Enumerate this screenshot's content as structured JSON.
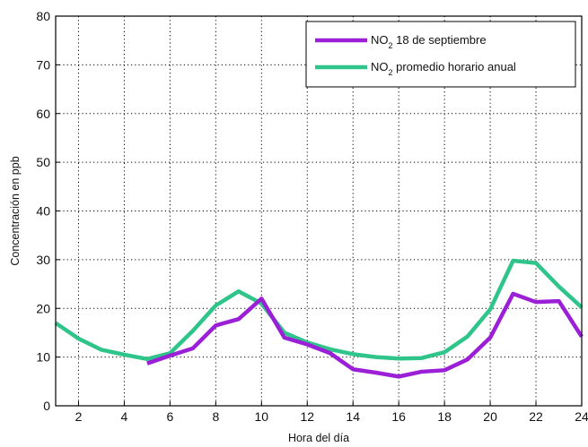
{
  "chart_data": {
    "type": "line",
    "title": "",
    "xlabel": "Hora del día",
    "ylabel": "Concentración en ppb",
    "xlim": [
      1,
      24
    ],
    "ylim": [
      0,
      80
    ],
    "xticks": [
      2,
      4,
      6,
      8,
      10,
      12,
      14,
      16,
      18,
      20,
      22,
      24
    ],
    "yticks": [
      0,
      10,
      20,
      30,
      40,
      50,
      60,
      70,
      80
    ],
    "grid": true,
    "legend_position": "top-right",
    "series": [
      {
        "name": "NO",
        "name_sub": "2",
        "name_suffix": " 18 de septiembre",
        "color": "#9b1fd6",
        "x": [
          5,
          6,
          7,
          8,
          9,
          10,
          11,
          12,
          13,
          14,
          15,
          16,
          17,
          18,
          19,
          20,
          21,
          22,
          23,
          24
        ],
        "y": [
          8.7,
          10.3,
          11.8,
          16.5,
          17.8,
          22,
          14,
          12.6,
          10.8,
          7.5,
          6.8,
          6,
          7,
          7.3,
          9.5,
          14,
          23,
          21.3,
          21.5,
          14.2
        ]
      },
      {
        "name": "NO",
        "name_sub": "2",
        "name_suffix": " promedio horario anual",
        "color": "#2ec48a",
        "x": [
          1,
          2,
          3,
          4,
          5,
          6,
          7,
          8,
          9,
          10,
          11,
          12,
          13,
          14,
          15,
          16,
          17,
          18,
          19,
          20,
          21,
          22,
          23,
          24
        ],
        "y": [
          17,
          13.8,
          11.5,
          10.5,
          9.6,
          10.8,
          15.4,
          20.6,
          23.5,
          21,
          15,
          13,
          11.6,
          10.6,
          10,
          9.7,
          9.8,
          11,
          14.2,
          19.8,
          29.8,
          29.3,
          24.5,
          20.2
        ]
      }
    ]
  }
}
